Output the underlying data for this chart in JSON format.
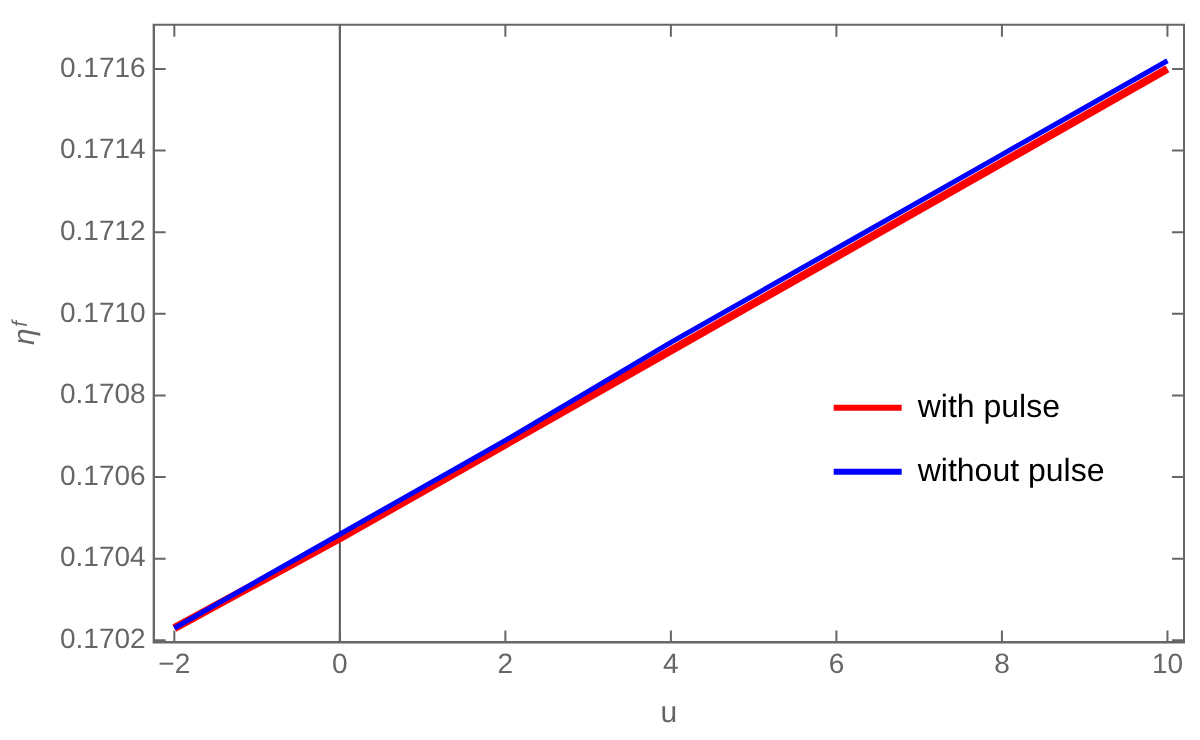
{
  "chart_data": {
    "type": "line",
    "xlabel": "u",
    "ylabel": "ηᶠ",
    "x": [
      -2,
      0,
      2,
      4,
      6,
      8,
      10
    ],
    "series": [
      {
        "name": "with pulse",
        "color": "#ff0000",
        "values": [
          0.17023,
          0.17045,
          0.17068,
          0.17091,
          0.17114,
          0.17137,
          0.1716
        ]
      },
      {
        "name": "without pulse",
        "color": "#0000ff",
        "values": [
          0.17023,
          0.17046,
          0.17069,
          0.17093,
          0.17116,
          0.17139,
          0.17162
        ]
      }
    ],
    "xlim": [
      -2.25,
      10.2
    ],
    "ylim": [
      0.170195,
      0.171708
    ],
    "xticks": [
      -2,
      0,
      2,
      4,
      6,
      8,
      10
    ],
    "yticks": [
      0.1702,
      0.1704,
      0.1706,
      0.1708,
      {
        "value": 0.171,
        "label": "0.1710"
      },
      0.1712,
      0.1714,
      0.1716
    ],
    "ref_lines": [
      {
        "axis": "x",
        "value": 0,
        "color": "#555555"
      }
    ],
    "grid": false,
    "legend": "right",
    "marker": "none",
    "line_style": "solid"
  }
}
